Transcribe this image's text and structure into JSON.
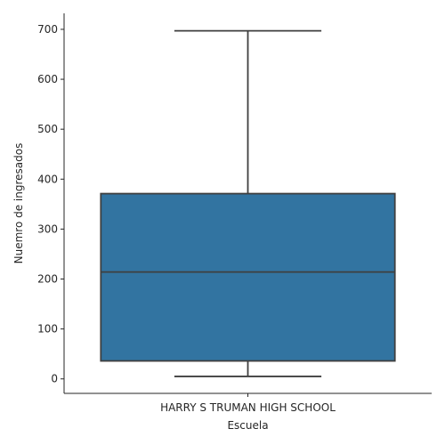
{
  "chart_data": {
    "type": "box",
    "xlabel": "Escuela",
    "ylabel": "Nuemro de ingresados",
    "categories": [
      "HARRY S TRUMAN HIGH SCHOOL"
    ],
    "boxes": [
      {
        "category": "HARRY S TRUMAN HIGH SCHOOL",
        "whisker_low": 5,
        "q1": 36,
        "median": 214,
        "q3": 371,
        "whisker_high": 697
      }
    ],
    "yticks": [
      0,
      100,
      200,
      300,
      400,
      500,
      600,
      700
    ],
    "ylim": [
      -29,
      732
    ],
    "grid": false,
    "box_color": "#3274a1",
    "line_color": "#3f3f3f"
  }
}
